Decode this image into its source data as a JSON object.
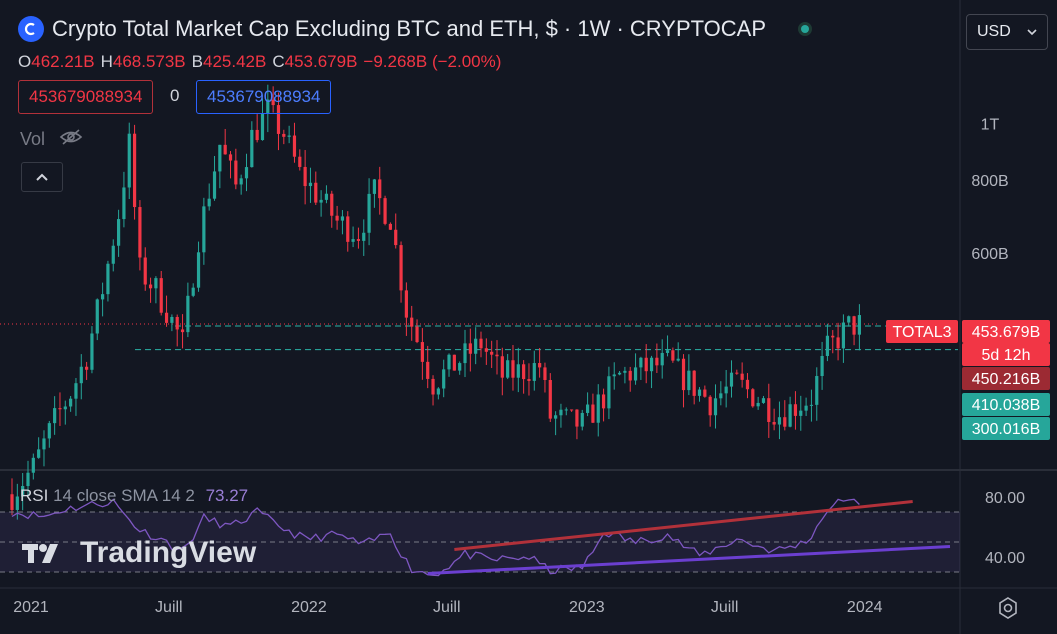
{
  "header": {
    "title": "Crypto Total Market Cap Excluding BTC and ETH, $ · 1W · CRYPTOCAP",
    "ohlc": [
      {
        "k": "O",
        "v": "462.21B"
      },
      {
        "k": "H",
        "v": "468.573B"
      },
      {
        "k": "B",
        "v": "425.42B"
      },
      {
        "k": "C",
        "v": "453.679B"
      },
      {
        "k": "",
        "v": "−9.268B (−2.00%)"
      }
    ],
    "box_left": "453679088934",
    "box_mid": "0",
    "box_right": "453679088934",
    "vol_label": "Vol",
    "currency": "USD"
  },
  "colors": {
    "up": "#26a69a",
    "down": "#f23645",
    "bg": "#131722",
    "rsi": "#7e57c2",
    "trend_top": "#b2313a",
    "trend_bottom": "#6b3fd0",
    "accent": "#2962ff"
  },
  "rsi": {
    "label": "RSI",
    "params": "14 close SMA 14 2",
    "value": "73.27",
    "ticks": [
      "80.00",
      "40.00"
    ]
  },
  "watermark": "TradingView",
  "chart_data": {
    "type": "candlestick",
    "title": "Crypto Total Market Cap Excluding BTC and ETH",
    "y_scale": "log",
    "y_ticks": [
      {
        "label": "1T",
        "value": 1000
      },
      {
        "label": "800B",
        "value": 800
      },
      {
        "label": "600B",
        "value": 600
      }
    ],
    "x_ticks": [
      "2021",
      "Juill",
      "2022",
      "Juill",
      "2023",
      "Juill",
      "2024"
    ],
    "price_labels": [
      {
        "text": "TOTAL3",
        "value": 453.679,
        "kind": "symbol"
      },
      {
        "text": "453.679B",
        "value": 453.679,
        "kind": "last"
      },
      {
        "text": "5d 12h",
        "value": 453.679,
        "kind": "countdown"
      },
      {
        "text": "450.216B",
        "value": 450.216,
        "kind": "line"
      },
      {
        "text": "410.038B",
        "value": 410.038,
        "kind": "line"
      },
      {
        "text": "300.016B",
        "value": 300.016,
        "kind": "line"
      }
    ],
    "anchors": [
      [
        "2020-12-07",
        232
      ],
      [
        "2021-01-04",
        258
      ],
      [
        "2021-02-01",
        310
      ],
      [
        "2021-02-22",
        345
      ],
      [
        "2021-03-15",
        400
      ],
      [
        "2021-04-05",
        520
      ],
      [
        "2021-04-26",
        700
      ],
      [
        "2021-05-10",
        920
      ],
      [
        "2021-05-24",
        560
      ],
      [
        "2021-06-14",
        520
      ],
      [
        "2021-06-28",
        480
      ],
      [
        "2021-07-19",
        420
      ],
      [
        "2021-08-09",
        640
      ],
      [
        "2021-09-06",
        920
      ],
      [
        "2021-09-27",
        780
      ],
      [
        "2021-10-18",
        950
      ],
      [
        "2021-11-08",
        1050
      ],
      [
        "2021-11-29",
        960
      ],
      [
        "2021-12-20",
        820
      ],
      [
        "2022-01-17",
        740
      ],
      [
        "2022-02-07",
        680
      ],
      [
        "2022-03-07",
        650
      ],
      [
        "2022-03-28",
        760
      ],
      [
        "2022-04-18",
        690
      ],
      [
        "2022-05-09",
        480
      ],
      [
        "2022-06-13",
        360
      ],
      [
        "2022-07-25",
        400
      ],
      [
        "2022-08-15",
        420
      ],
      [
        "2022-09-12",
        370
      ],
      [
        "2022-10-31",
        385
      ],
      [
        "2022-11-14",
        315
      ],
      [
        "2022-12-26",
        305
      ],
      [
        "2023-02-13",
        370
      ],
      [
        "2023-04-17",
        390
      ],
      [
        "2023-06-12",
        335
      ],
      [
        "2023-07-17",
        360
      ],
      [
        "2023-09-11",
        318
      ],
      [
        "2023-10-23",
        340
      ],
      [
        "2023-11-13",
        410
      ],
      [
        "2023-12-11",
        450
      ],
      [
        "2023-12-25",
        453
      ]
    ],
    "rsi_range": [
      20,
      100
    ],
    "rsi_anchors": [
      [
        "2020-12-07",
        70
      ],
      [
        "2021-01-18",
        67
      ],
      [
        "2021-02-15",
        72
      ],
      [
        "2021-03-22",
        75
      ],
      [
        "2021-04-19",
        77
      ],
      [
        "2021-05-24",
        58
      ],
      [
        "2021-06-21",
        52
      ],
      [
        "2021-07-19",
        44
      ],
      [
        "2021-08-16",
        66
      ],
      [
        "2021-09-20",
        60
      ],
      [
        "2021-10-25",
        70
      ],
      [
        "2021-11-22",
        61
      ],
      [
        "2021-12-27",
        52
      ],
      [
        "2022-02-07",
        55
      ],
      [
        "2022-03-14",
        48
      ],
      [
        "2022-04-18",
        57
      ],
      [
        "2022-05-16",
        32
      ],
      [
        "2022-06-13",
        28
      ],
      [
        "2022-07-25",
        42
      ],
      [
        "2022-08-29",
        38
      ],
      [
        "2022-10-17",
        40
      ],
      [
        "2022-11-14",
        31
      ],
      [
        "2022-12-26",
        33
      ],
      [
        "2023-01-23",
        57
      ],
      [
        "2023-03-06",
        50
      ],
      [
        "2023-04-17",
        55
      ],
      [
        "2023-05-29",
        41
      ],
      [
        "2023-07-17",
        52
      ],
      [
        "2023-09-04",
        44
      ],
      [
        "2023-10-16",
        50
      ],
      [
        "2023-11-13",
        72
      ],
      [
        "2023-12-11",
        80
      ],
      [
        "2023-12-25",
        73
      ]
    ],
    "trend_top": [
      [
        "2022-07-11",
        45
      ],
      [
        "2024-03-04",
        77
      ]
    ],
    "trend_bottom": [
      [
        "2022-06-06",
        29
      ],
      [
        "2024-04-22",
        47
      ]
    ]
  }
}
